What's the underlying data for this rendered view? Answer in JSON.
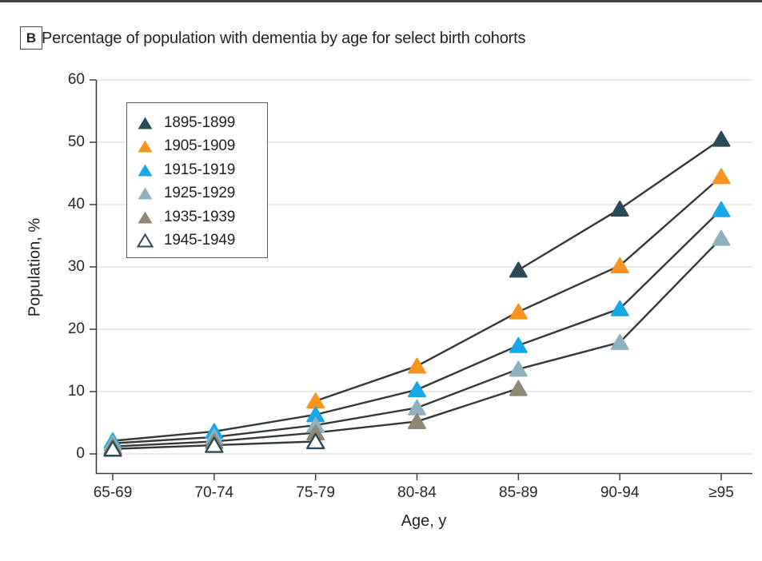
{
  "figure": {
    "panel_label": "B",
    "title": "Percentage of population with dementia by age for select birth cohorts"
  },
  "colors": {
    "top_rule": "#3b4046",
    "axis": "#3a3e41",
    "gridline": "#e3e3e3",
    "text": "#26292c",
    "line": "#33383b",
    "background": "#ffffff"
  },
  "chart_data": {
    "type": "line",
    "title": "Percentage of population with dementia by age for select birth cohorts",
    "xlabel": "Age, y",
    "ylabel": "Population, %",
    "categories": [
      "65-69",
      "70-74",
      "75-79",
      "80-84",
      "85-89",
      "90-94",
      "≥95"
    ],
    "y_ticks": [
      0,
      10,
      20,
      30,
      40,
      50,
      60
    ],
    "ylim": [
      0,
      60
    ],
    "grid": true,
    "legend_position": "upper-left",
    "marker": "triangle-up",
    "series": [
      {
        "name": "1895-1899",
        "color": "#2b4a57",
        "marker_fill": "solid",
        "values": [
          null,
          null,
          null,
          null,
          29.5,
          39.3,
          50.5
        ]
      },
      {
        "name": "1905-1909",
        "color": "#f7941e",
        "marker_fill": "solid",
        "values": [
          null,
          null,
          8.5,
          14.1,
          22.8,
          30.2,
          44.5
        ]
      },
      {
        "name": "1915-1919",
        "color": "#18a8e8",
        "marker_fill": "solid",
        "values": [
          2.1,
          3.6,
          6.3,
          10.3,
          17.4,
          23.3,
          39.2
        ]
      },
      {
        "name": "1925-1929",
        "color": "#8fb0bf",
        "marker_fill": "solid",
        "values": [
          1.7,
          2.7,
          4.6,
          7.4,
          13.6,
          17.9,
          34.6
        ]
      },
      {
        "name": "1935-1939",
        "color": "#8e8874",
        "marker_fill": "solid",
        "values": [
          1.2,
          2.0,
          3.4,
          5.2,
          10.5,
          null,
          null
        ]
      },
      {
        "name": "1945-1949",
        "color": "#2b4a57",
        "marker_fill": "open",
        "values": [
          0.8,
          1.4,
          2.0,
          null,
          null,
          null,
          null
        ]
      }
    ]
  }
}
